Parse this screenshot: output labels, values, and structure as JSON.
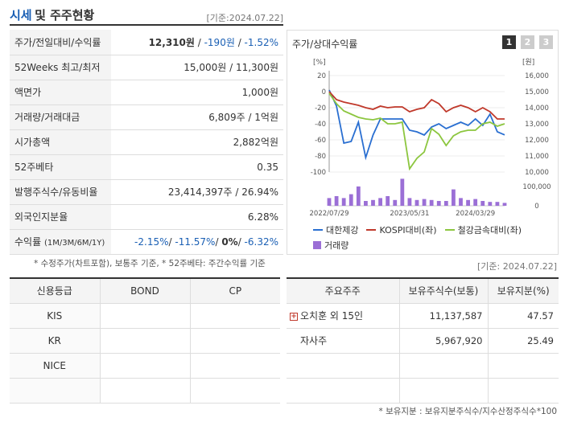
{
  "header": {
    "title_main": "시세",
    "title_sub": "및 주주현황",
    "date": "[기준:2024.07.22]"
  },
  "price_rows": [
    {
      "label": "주가/전일대비/수익률",
      "value_parts": [
        "12,310원",
        " / ",
        "-190원",
        " / ",
        "-1.52%"
      ]
    },
    {
      "label": "52Weeks 최고/최저",
      "value": "15,000원 / 11,300원"
    },
    {
      "label": "액면가",
      "value": "1,000원"
    },
    {
      "label": "거래량/거래대금",
      "value": "6,809주 / 1억원"
    },
    {
      "label": "시가총액",
      "value": "2,882억원"
    },
    {
      "label": "52주베타",
      "value": "0.35"
    },
    {
      "label": "발행주식수/유동비율",
      "value": "23,414,397주 / 26.94%"
    },
    {
      "label": "외국인지분율",
      "value": "6.28%"
    },
    {
      "label": "수익률",
      "label_small": "(1M/3M/6M/1Y)",
      "value_parts": [
        "-2.15%",
        "/ ",
        "-11.57%",
        "/ ",
        "0%",
        "/ ",
        "-6.32%"
      ]
    }
  ],
  "notes": {
    "left": "* 수정주가(차트포함), 보통주 기준, * 52주베타: 주간수익률 기준",
    "right_date": "[기준: 2024.07.22]",
    "right": "* 보유지분 : 보유지분주식수/지수산정주식수*100"
  },
  "chart": {
    "title": "주가/상대수익률",
    "pages": [
      "1",
      "2",
      "3"
    ],
    "left_unit": "[%]",
    "right_unit": "[원]",
    "left_ticks": [
      "20",
      "0",
      "-20",
      "-40",
      "-60",
      "-80",
      "-100"
    ],
    "right_ticks": [
      "16,000",
      "15,000",
      "14,000",
      "13,000",
      "12,000",
      "11,000",
      "10,000"
    ],
    "vol_ticks": [
      "100,000",
      "0"
    ],
    "x_labels": [
      "2022/07/29",
      "2023/05/31",
      "2024/03/29"
    ],
    "legend": [
      {
        "name": "대한제강",
        "color": "#2a6fd1",
        "kind": "line"
      },
      {
        "name": "KOSPI대비(좌)",
        "color": "#c0392b",
        "kind": "line"
      },
      {
        "name": "철강금속대비(좌)",
        "color": "#8cc63f",
        "kind": "line"
      },
      {
        "name": "거래량",
        "color": "#9b6fd6",
        "kind": "bar"
      }
    ]
  },
  "chart_data": {
    "type": "line",
    "x": [
      "2022/07",
      "2022/08",
      "2022/09",
      "2022/10",
      "2022/11",
      "2022/12",
      "2023/01",
      "2023/02",
      "2023/03",
      "2023/04",
      "2023/05",
      "2023/06",
      "2023/07",
      "2023/08",
      "2023/09",
      "2023/10",
      "2023/11",
      "2023/12",
      "2024/01",
      "2024/02",
      "2024/03",
      "2024/04",
      "2024/05",
      "2024/06",
      "2024/07"
    ],
    "series": [
      {
        "name": "대한제강",
        "axis": "right",
        "values": [
          15100,
          14100,
          11800,
          11900,
          13100,
          10900,
          12300,
          13300,
          13300,
          13300,
          13300,
          12600,
          12500,
          12300,
          12800,
          13000,
          12700,
          12900,
          13100,
          12900,
          13300,
          12900,
          13600,
          12500,
          12310
        ]
      },
      {
        "name": "KOSPI대비(좌)",
        "axis": "left",
        "values": [
          0,
          -10,
          -13,
          -15,
          -17,
          -20,
          -22,
          -18,
          -20,
          -19,
          -19,
          -25,
          -22,
          -20,
          -10,
          -15,
          -25,
          -20,
          -17,
          -20,
          -25,
          -20,
          -25,
          -34,
          -34
        ]
      },
      {
        "name": "철강금속대비(좌)",
        "axis": "left",
        "values": [
          -2,
          -15,
          -24,
          -28,
          -32,
          -34,
          -35,
          -33,
          -40,
          -40,
          -38,
          -96,
          -83,
          -75,
          -46,
          -53,
          -67,
          -55,
          -50,
          -48,
          -48,
          -40,
          -38,
          -43,
          -40
        ]
      },
      {
        "name": "거래량",
        "axis": "volume",
        "values": [
          40000,
          50000,
          40000,
          60000,
          100000,
          25000,
          30000,
          40000,
          50000,
          30000,
          140000,
          40000,
          30000,
          35000,
          30000,
          25000,
          25000,
          85000,
          40000,
          30000,
          35000,
          25000,
          20000,
          20000,
          15000
        ]
      }
    ],
    "left_ylim": [
      -100,
      20
    ],
    "right_ylim": [
      10000,
      16000
    ],
    "volume_ylim": [
      0,
      100000
    ]
  },
  "credit": {
    "headers": [
      "신용등급",
      "BOND",
      "CP"
    ],
    "rows": [
      [
        "KIS",
        "",
        ""
      ],
      [
        "KR",
        "",
        ""
      ],
      [
        "NICE",
        "",
        ""
      ],
      [
        "",
        "",
        ""
      ]
    ]
  },
  "holders": {
    "headers": [
      "주요주주",
      "보유주식수(보통)",
      "보유지분(%)"
    ],
    "rows": [
      {
        "name": "오치훈 외 15인",
        "shares": "11,137,587",
        "pct": "47.57",
        "expandable": true
      },
      {
        "name": "자사주",
        "shares": "5,967,920",
        "pct": "25.49",
        "expandable": false
      },
      {
        "name": "",
        "shares": "",
        "pct": "",
        "expandable": false
      },
      {
        "name": "",
        "shares": "",
        "pct": "",
        "expandable": false
      }
    ]
  }
}
